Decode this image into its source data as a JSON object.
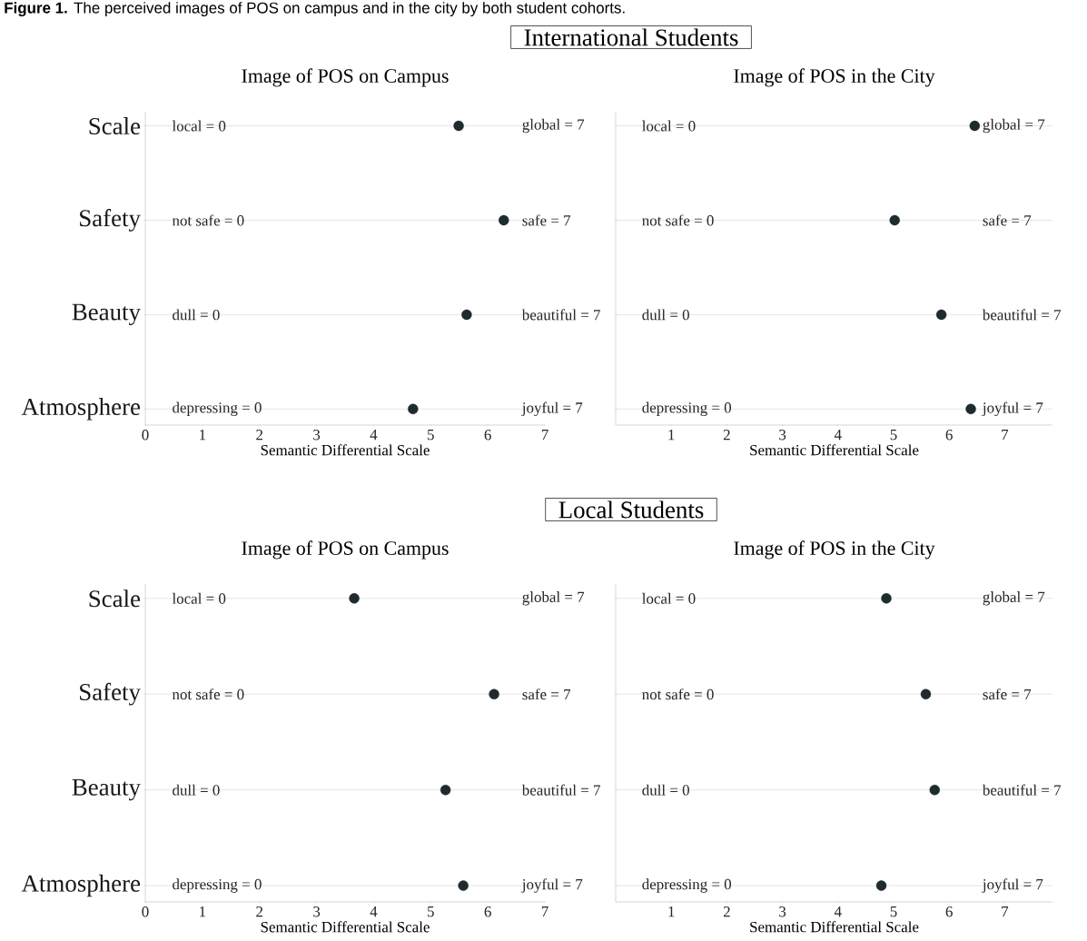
{
  "chart_data": [
    {
      "type": "scatter",
      "title": "Image of POS on Campus",
      "xlabel": "Semantic Differential Scale",
      "categories": [
        "Scale",
        "Safety",
        "Beauty",
        "Atmosphere"
      ],
      "values": [
        5.49,
        6.28,
        5.63,
        4.69
      ],
      "color": "#1e2b2f",
      "xlim": [
        0,
        7
      ],
      "xticks": [
        0,
        1,
        2,
        3,
        4,
        5,
        6,
        7
      ],
      "grid": "y",
      "marker": "circle",
      "orientation": "horizontal",
      "annotations": [
        "**Figure 1.** The perceived images of POS on campus and in the city by both student cohorts.",
        "local = 0",
        "global = 7",
        "not safe = 0",
        "safe = 7",
        "dull = 0",
        "beautiful = 7",
        "depressing = 0",
        "joyful = 7"
      ]
    },
    {
      "type": "scatter",
      "title": "Image of POS in the City",
      "xlabel": "Semantic Differential Scale",
      "subtitle": "International Students",
      "categories": [
        null,
        null,
        null,
        null
      ],
      "values": [
        6.46,
        5.02,
        5.86,
        6.39
      ],
      "color": "#1e2b2f",
      "orientation": "horizontal",
      "xlim": [
        0,
        7.86
      ],
      "xticks": [
        1,
        2,
        3,
        4,
        5,
        6,
        7
      ],
      "grid": "y",
      "marker": "circle",
      "annotations": [
        "local = 0",
        "global = 7",
        "not safe = 0",
        "safe = 7",
        "dull = 0",
        "beautiful = 7",
        "depressing = 0",
        "joyful = 7"
      ]
    },
    {
      "type": "scatter",
      "title": "Image of POS on Campus",
      "xlabel": "Semantic Differential Scale",
      "categories": [
        "Scale",
        "Safety",
        "Beauty",
        "Atmosphere"
      ],
      "values": [
        3.66,
        6.11,
        5.26,
        5.57
      ],
      "color": "#1e2b2f",
      "orientation": "horizontal",
      "xlim": [
        0,
        7
      ],
      "xticks": [
        0,
        1,
        2,
        3,
        4,
        5,
        6,
        7
      ],
      "grid": "y",
      "marker": "circle",
      "annotations": [
        "local = 0",
        "global = 7",
        "not safe = 0",
        "safe = 7",
        "dull = 0",
        "beautiful = 7",
        "depressing = 0",
        "joyful = 7"
      ]
    },
    {
      "type": "scatter",
      "title": "Image of POS in the City",
      "xlabel": "Semantic Differential Scale",
      "subtitle": "Local Students",
      "categories": [
        null,
        null,
        null,
        null
      ],
      "values": [
        4.87,
        5.58,
        5.74,
        4.78
      ],
      "color": "#1e2b2f",
      "orientation": "horizontal",
      "xlim": [
        0,
        7.86
      ],
      "xticks": [
        1,
        2,
        3,
        4,
        5,
        6,
        7
      ],
      "grid": "y",
      "marker": "circle",
      "annotations": [
        "local = 0",
        "global = 7",
        "not safe = 0",
        "safe = 7",
        "dull = 0",
        "beautiful = 7",
        "depressing = 0",
        "joyful = 7"
      ]
    }
  ]
}
